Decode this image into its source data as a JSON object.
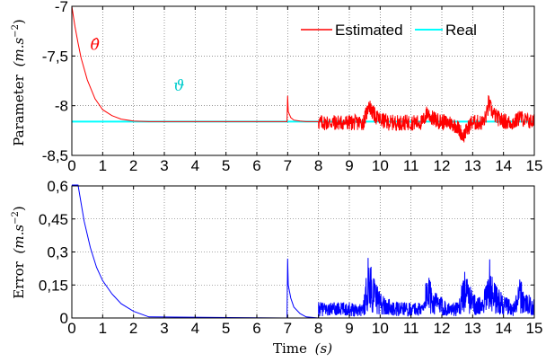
{
  "chart_data": [
    {
      "type": "line",
      "ylabel": "Parameter (m.s^-2)",
      "ylabel_text": "Parameter",
      "ylabel_unit": "(m.s",
      "ylabel_exp": "−2",
      "ylabel_close": ")",
      "xlim": [
        0,
        15
      ],
      "ylim": [
        -8.5,
        -7
      ],
      "xticks": [
        "0",
        "1",
        "2",
        "3",
        "4",
        "5",
        "6",
        "7",
        "8",
        "9",
        "10",
        "11",
        "12",
        "13",
        "14",
        "15"
      ],
      "yticks": [
        "-7",
        "-7,5",
        "-8",
        "-8,5"
      ],
      "ytick_values": [
        -7,
        -7.5,
        -8,
        -8.5
      ],
      "grid": true,
      "legend_position": "top-right",
      "annotations": [
        {
          "text": "θ̂",
          "color": "#ff0000",
          "x": 0.6,
          "y": -7.44
        },
        {
          "text": "ϑ",
          "color": "#00cccc",
          "x": 3.3,
          "y": -7.85
        }
      ],
      "series": [
        {
          "name": "Estimated",
          "color": "#ff0000",
          "description_points": {
            "x": [
              0,
              0.1,
              0.2,
              0.3,
              0.5,
              0.75,
              1.0,
              1.3,
              1.6,
              2.0,
              2.5,
              6.98,
              7.0,
              7.02,
              7.1,
              7.2,
              7.4,
              7.6,
              8.0
            ],
            "y": [
              -7.0,
              -7.2,
              -7.37,
              -7.52,
              -7.74,
              -7.93,
              -8.04,
              -8.1,
              -8.135,
              -8.155,
              -8.16,
              -8.16,
              -7.9,
              -8.06,
              -8.12,
              -8.145,
              -8.155,
              -8.16,
              -8.16
            ]
          },
          "noisy_after_x": 8,
          "noise_center": -8.17,
          "noise_band": 0.08,
          "bumps": [
            {
              "x": 9.6,
              "peak": -7.95
            },
            {
              "x": 11.5,
              "peak": -8.05
            },
            {
              "x": 12.4,
              "peak": -8.2
            },
            {
              "x": 13.5,
              "peak": -7.95
            },
            {
              "x": 14.5,
              "peak": -8.1
            }
          ],
          "dip": {
            "x": 12.7,
            "value": -8.3
          }
        },
        {
          "name": "Real",
          "color": "#00ffff",
          "x": [
            0,
            15
          ],
          "y": [
            -8.16,
            -8.16
          ]
        }
      ]
    },
    {
      "type": "line",
      "xlabel": "Time (s)",
      "xlabel_text": "Time",
      "xlabel_unit": "(s)",
      "ylabel": "Error (m.s^-2)",
      "ylabel_text": "Error",
      "ylabel_unit": "(m.s",
      "ylabel_exp": "−2",
      "ylabel_close": ")",
      "xlim": [
        0,
        15
      ],
      "ylim": [
        0,
        0.6
      ],
      "xticks": [
        "0",
        "1",
        "2",
        "3",
        "4",
        "5",
        "6",
        "7",
        "8",
        "9",
        "10",
        "11",
        "12",
        "13",
        "14",
        "15"
      ],
      "yticks": [
        "0",
        "0,15",
        "0,3",
        "0,45",
        "0,6"
      ],
      "ytick_values": [
        0,
        0.15,
        0.3,
        0.45,
        0.6
      ],
      "grid": true,
      "series": [
        {
          "color": "#0000ff",
          "description_points": {
            "x": [
              0,
              0.2,
              0.4,
              0.6,
              0.8,
              1.0,
              1.3,
              1.6,
              2.0,
              2.5,
              6.98,
              7.0,
              7.02,
              7.1,
              7.2,
              7.4,
              7.6,
              8.0
            ],
            "y": [
              0.84,
              0.61,
              0.44,
              0.32,
              0.23,
              0.17,
              0.11,
              0.065,
              0.03,
              0.005,
              0.0,
              0.27,
              0.15,
              0.09,
              0.05,
              0.02,
              0.005,
              0.0
            ],
            "clipped_above": 0.6
          },
          "noisy_after_x": 8,
          "noise_mean": 0.04,
          "bumps": [
            {
              "x": 9.6,
              "peak": 0.24
            },
            {
              "x": 11.5,
              "peak": 0.17
            },
            {
              "x": 12.7,
              "peak": 0.19
            },
            {
              "x": 13.5,
              "peak": 0.24
            },
            {
              "x": 14.5,
              "peak": 0.14
            }
          ]
        }
      ]
    }
  ]
}
